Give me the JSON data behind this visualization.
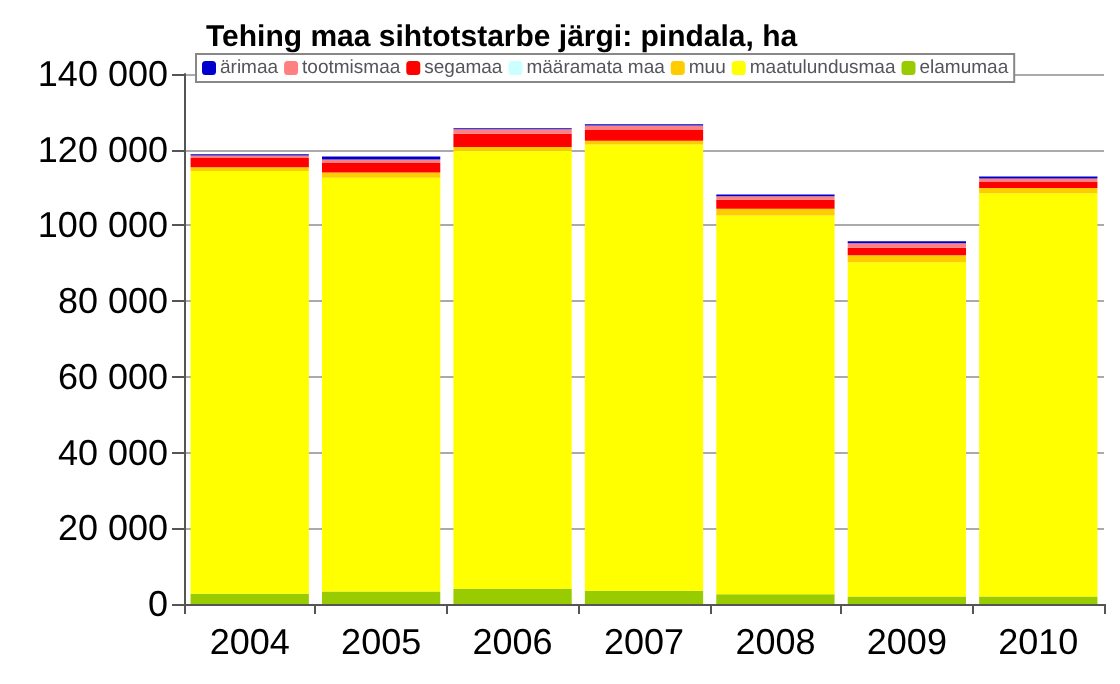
{
  "chart_data": {
    "type": "bar",
    "title": "Tehing maa sihtotstarbe järgi: pindala, ha",
    "categories": [
      "2004",
      "2005",
      "2006",
      "2007",
      "2008",
      "2009",
      "2010"
    ],
    "stacked": true,
    "series": [
      {
        "name": "elamumaa",
        "color": "#99cc00",
        "values": [
          2700,
          3300,
          4000,
          3500,
          2600,
          2000,
          2000
        ]
      },
      {
        "name": "maatulundusmaa",
        "color": "#ffff00",
        "values": [
          111700,
          109300,
          115700,
          117900,
          100000,
          88300,
          106500
        ]
      },
      {
        "name": "muu",
        "color": "#ffcc00",
        "values": [
          1000,
          1400,
          1000,
          1000,
          1800,
          1800,
          1400
        ]
      },
      {
        "name": "määramata maa",
        "color": "#ccffff",
        "values": [
          null,
          null,
          null,
          null,
          null,
          null,
          null
        ]
      },
      {
        "name": "segamaa",
        "color": "#ff0000",
        "values": [
          2400,
          2500,
          3500,
          2800,
          2400,
          2000,
          1600
        ]
      },
      {
        "name": "tootmismaa",
        "color": "#ff8080",
        "values": [
          700,
          900,
          1200,
          1200,
          900,
          1200,
          900
        ]
      },
      {
        "name": "ärimaa",
        "color": "#0000cc",
        "values": [
          300,
          800,
          300,
          300,
          500,
          500,
          500
        ]
      }
    ],
    "ylim": [
      0,
      140000
    ],
    "yticks": [
      {
        "value": 0,
        "label": "0"
      },
      {
        "value": 20000,
        "label": "20 000"
      },
      {
        "value": 40000,
        "label": "40 000"
      },
      {
        "value": 60000,
        "label": "60 000"
      },
      {
        "value": 80000,
        "label": "80 000"
      },
      {
        "value": 100000,
        "label": "100 000"
      },
      {
        "value": 120000,
        "label": "120 000"
      },
      {
        "value": 140000,
        "label": "140 000"
      }
    ],
    "grid": "y",
    "legend": "top"
  }
}
